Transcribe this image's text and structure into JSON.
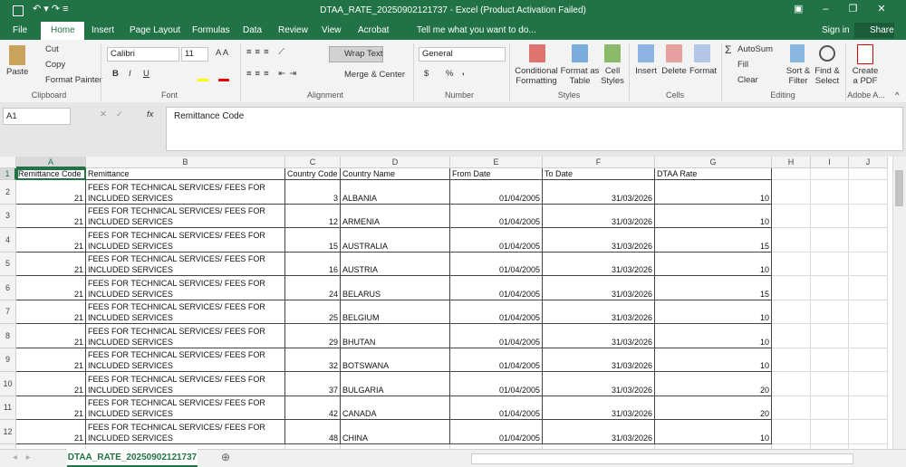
{
  "title_bar": {
    "title": "DTAA_RATE_20250902121737 - Excel (Product Activation Failed)"
  },
  "ribbon_tabs": [
    "File",
    "Home",
    "Insert",
    "Page Layout",
    "Formulas",
    "Data",
    "Review",
    "View",
    "Acrobat"
  ],
  "tell_me": "Tell me what you want to do...",
  "account": {
    "sign_in": "Sign in",
    "share": "Share"
  },
  "ribbon": {
    "clipboard": {
      "paste": "Paste",
      "cut": "Cut",
      "copy": "Copy",
      "format_painter": "Format Painter",
      "label": "Clipboard"
    },
    "font": {
      "name": "Calibri",
      "size": "11",
      "bold": "B",
      "italic": "I",
      "underline": "U",
      "label": "Font"
    },
    "alignment": {
      "wrap_text": "Wrap Text",
      "merge": "Merge & Center",
      "label": "Alignment"
    },
    "number": {
      "format": "General",
      "currency": "$",
      "percent": "%",
      "comma": ",",
      "label": "Number"
    },
    "styles": {
      "conditional": "Conditional Formatting",
      "format_table": "Format as Table",
      "cell_styles": "Cell Styles",
      "label": "Styles"
    },
    "cells": {
      "insert": "Insert",
      "delete": "Delete",
      "format": "Format",
      "label": "Cells"
    },
    "editing": {
      "autosum": "AutoSum",
      "fill": "Fill",
      "clear": "Clear",
      "sort": "Sort & Filter",
      "find": "Find & Select",
      "label": "Editing"
    },
    "adobe": {
      "create": "Create a PDF",
      "label": "Adobe A..."
    }
  },
  "formula_bar": {
    "name_box": "A1",
    "fx": "fx",
    "content": "Remittance Code"
  },
  "sheet": {
    "columns": [
      "A",
      "B",
      "C",
      "D",
      "E",
      "F",
      "G",
      "H",
      "I",
      "J"
    ],
    "row_numbers": [
      1,
      2,
      3,
      4,
      5,
      6,
      7,
      8,
      9,
      10,
      11,
      12
    ],
    "rows": [
      [
        "Remittance Code",
        "Remittance",
        "Country Code",
        "Country Name",
        "From Date",
        "To Date",
        "DTAA Rate"
      ],
      [
        21,
        "FEES FOR TECHNICAL SERVICES/ FEES FOR INCLUDED SERVICES",
        3,
        "ALBANIA",
        "01/04/2005",
        "31/03/2026",
        10
      ],
      [
        21,
        "FEES FOR TECHNICAL SERVICES/ FEES FOR INCLUDED SERVICES",
        12,
        "ARMENIA",
        "01/04/2005",
        "31/03/2026",
        10
      ],
      [
        21,
        "FEES FOR TECHNICAL SERVICES/ FEES FOR INCLUDED SERVICES",
        15,
        "AUSTRALIA",
        "01/04/2005",
        "31/03/2026",
        15
      ],
      [
        21,
        "FEES FOR TECHNICAL SERVICES/ FEES FOR INCLUDED SERVICES",
        16,
        "AUSTRIA",
        "01/04/2005",
        "31/03/2026",
        10
      ],
      [
        21,
        "FEES FOR TECHNICAL SERVICES/ FEES FOR INCLUDED SERVICES",
        24,
        "BELARUS",
        "01/04/2005",
        "31/03/2026",
        15
      ],
      [
        21,
        "FEES FOR TECHNICAL SERVICES/ FEES FOR INCLUDED SERVICES",
        25,
        "BELGIUM",
        "01/04/2005",
        "31/03/2026",
        10
      ],
      [
        21,
        "FEES FOR TECHNICAL SERVICES/ FEES FOR INCLUDED SERVICES",
        29,
        "BHUTAN",
        "01/04/2005",
        "31/03/2026",
        10
      ],
      [
        21,
        "FEES FOR TECHNICAL SERVICES/ FEES FOR INCLUDED SERVICES",
        32,
        "BOTSWANA",
        "01/04/2005",
        "31/03/2026",
        10
      ],
      [
        21,
        "FEES FOR TECHNICAL SERVICES/ FEES FOR INCLUDED SERVICES",
        37,
        "BULGARIA",
        "01/04/2005",
        "31/03/2026",
        20
      ],
      [
        21,
        "FEES FOR TECHNICAL SERVICES/ FEES FOR INCLUDED SERVICES",
        42,
        "CANADA",
        "01/04/2005",
        "31/03/2026",
        20
      ],
      [
        21,
        "FEES FOR TECHNICAL SERVICES/ FEES FOR INCLUDED SERVICES",
        48,
        "CHINA",
        "01/04/2005",
        "31/03/2026",
        10
      ]
    ]
  },
  "sheet_tabs": [
    "DTAA_RATE_20250902121737"
  ]
}
